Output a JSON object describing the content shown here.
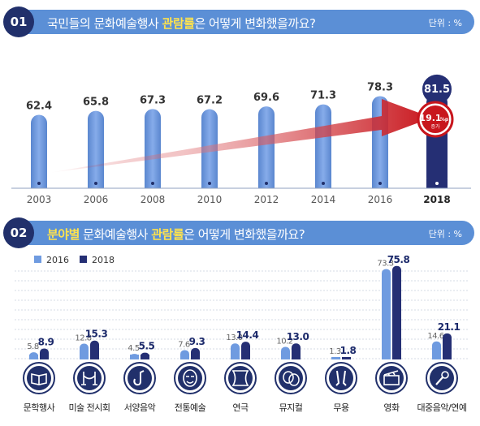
{
  "section1": {
    "number": "01",
    "title_pre": "국민들의 문화예술행사 ",
    "title_highlight": "관람률",
    "title_post": "은 어떻게 변화했을까요?",
    "unit": "단위 : %",
    "increase_value": "19.1",
    "increase_unit": "%p",
    "increase_label": "증가"
  },
  "section2": {
    "number": "02",
    "title_highlight1": "분야별",
    "title_mid": " 문화예술행사 ",
    "title_highlight2": "관람률",
    "title_post": "은 어떻게 변화했을까요?",
    "unit": "단위 : %",
    "icons": [
      "book-icon",
      "rope-barrier-icon",
      "saxophone-icon",
      "traditional-mask-icon",
      "theater-curtain-icon",
      "musical-masks-icon",
      "dance-icon",
      "film-clapper-icon",
      "microphone-icon"
    ]
  },
  "colors": {
    "banner": "#5b8fd6",
    "navy": "#21306b",
    "bar_light": "#6f9be0",
    "bar_dark": "#252f74",
    "arrow_red": "#c8161d"
  },
  "chart_data": [
    {
      "type": "bar",
      "categories": [
        "2003",
        "2006",
        "2008",
        "2010",
        "2012",
        "2014",
        "2016",
        "2018"
      ],
      "values": [
        62.4,
        65.8,
        67.3,
        67.2,
        69.6,
        71.3,
        78.3,
        81.5
      ],
      "value_labels": [
        "62.4",
        "65.8",
        "67.3",
        "67.2",
        "69.6",
        "71.3",
        "78.3",
        "81.5"
      ],
      "highlight_index": 7,
      "annotation": "19.1%p 증가"
    },
    {
      "type": "bar",
      "categories": [
        "문학행사",
        "미술 전시회",
        "서양음악",
        "전통예술",
        "연극",
        "뮤지컬",
        "무용",
        "영화",
        "대중음악/연예"
      ],
      "series": [
        {
          "name": "2016",
          "values": [
            5.8,
            12.8,
            4.5,
            7.6,
            13.0,
            10.2,
            1.3,
            73.3,
            14.6
          ],
          "labels": [
            "5.8",
            "12.8",
            "4.5",
            "7.6",
            "13.0",
            "10.2",
            "1.3",
            "73.3",
            "14.6"
          ]
        },
        {
          "name": "2018",
          "values": [
            8.9,
            15.3,
            5.5,
            9.3,
            14.4,
            13.0,
            1.8,
            75.8,
            21.1
          ],
          "labels": [
            "8.9",
            "15.3",
            "5.5",
            "9.3",
            "14.4",
            "13.0",
            "1.8",
            "75.8",
            "21.1"
          ]
        }
      ],
      "grid": true
    }
  ]
}
